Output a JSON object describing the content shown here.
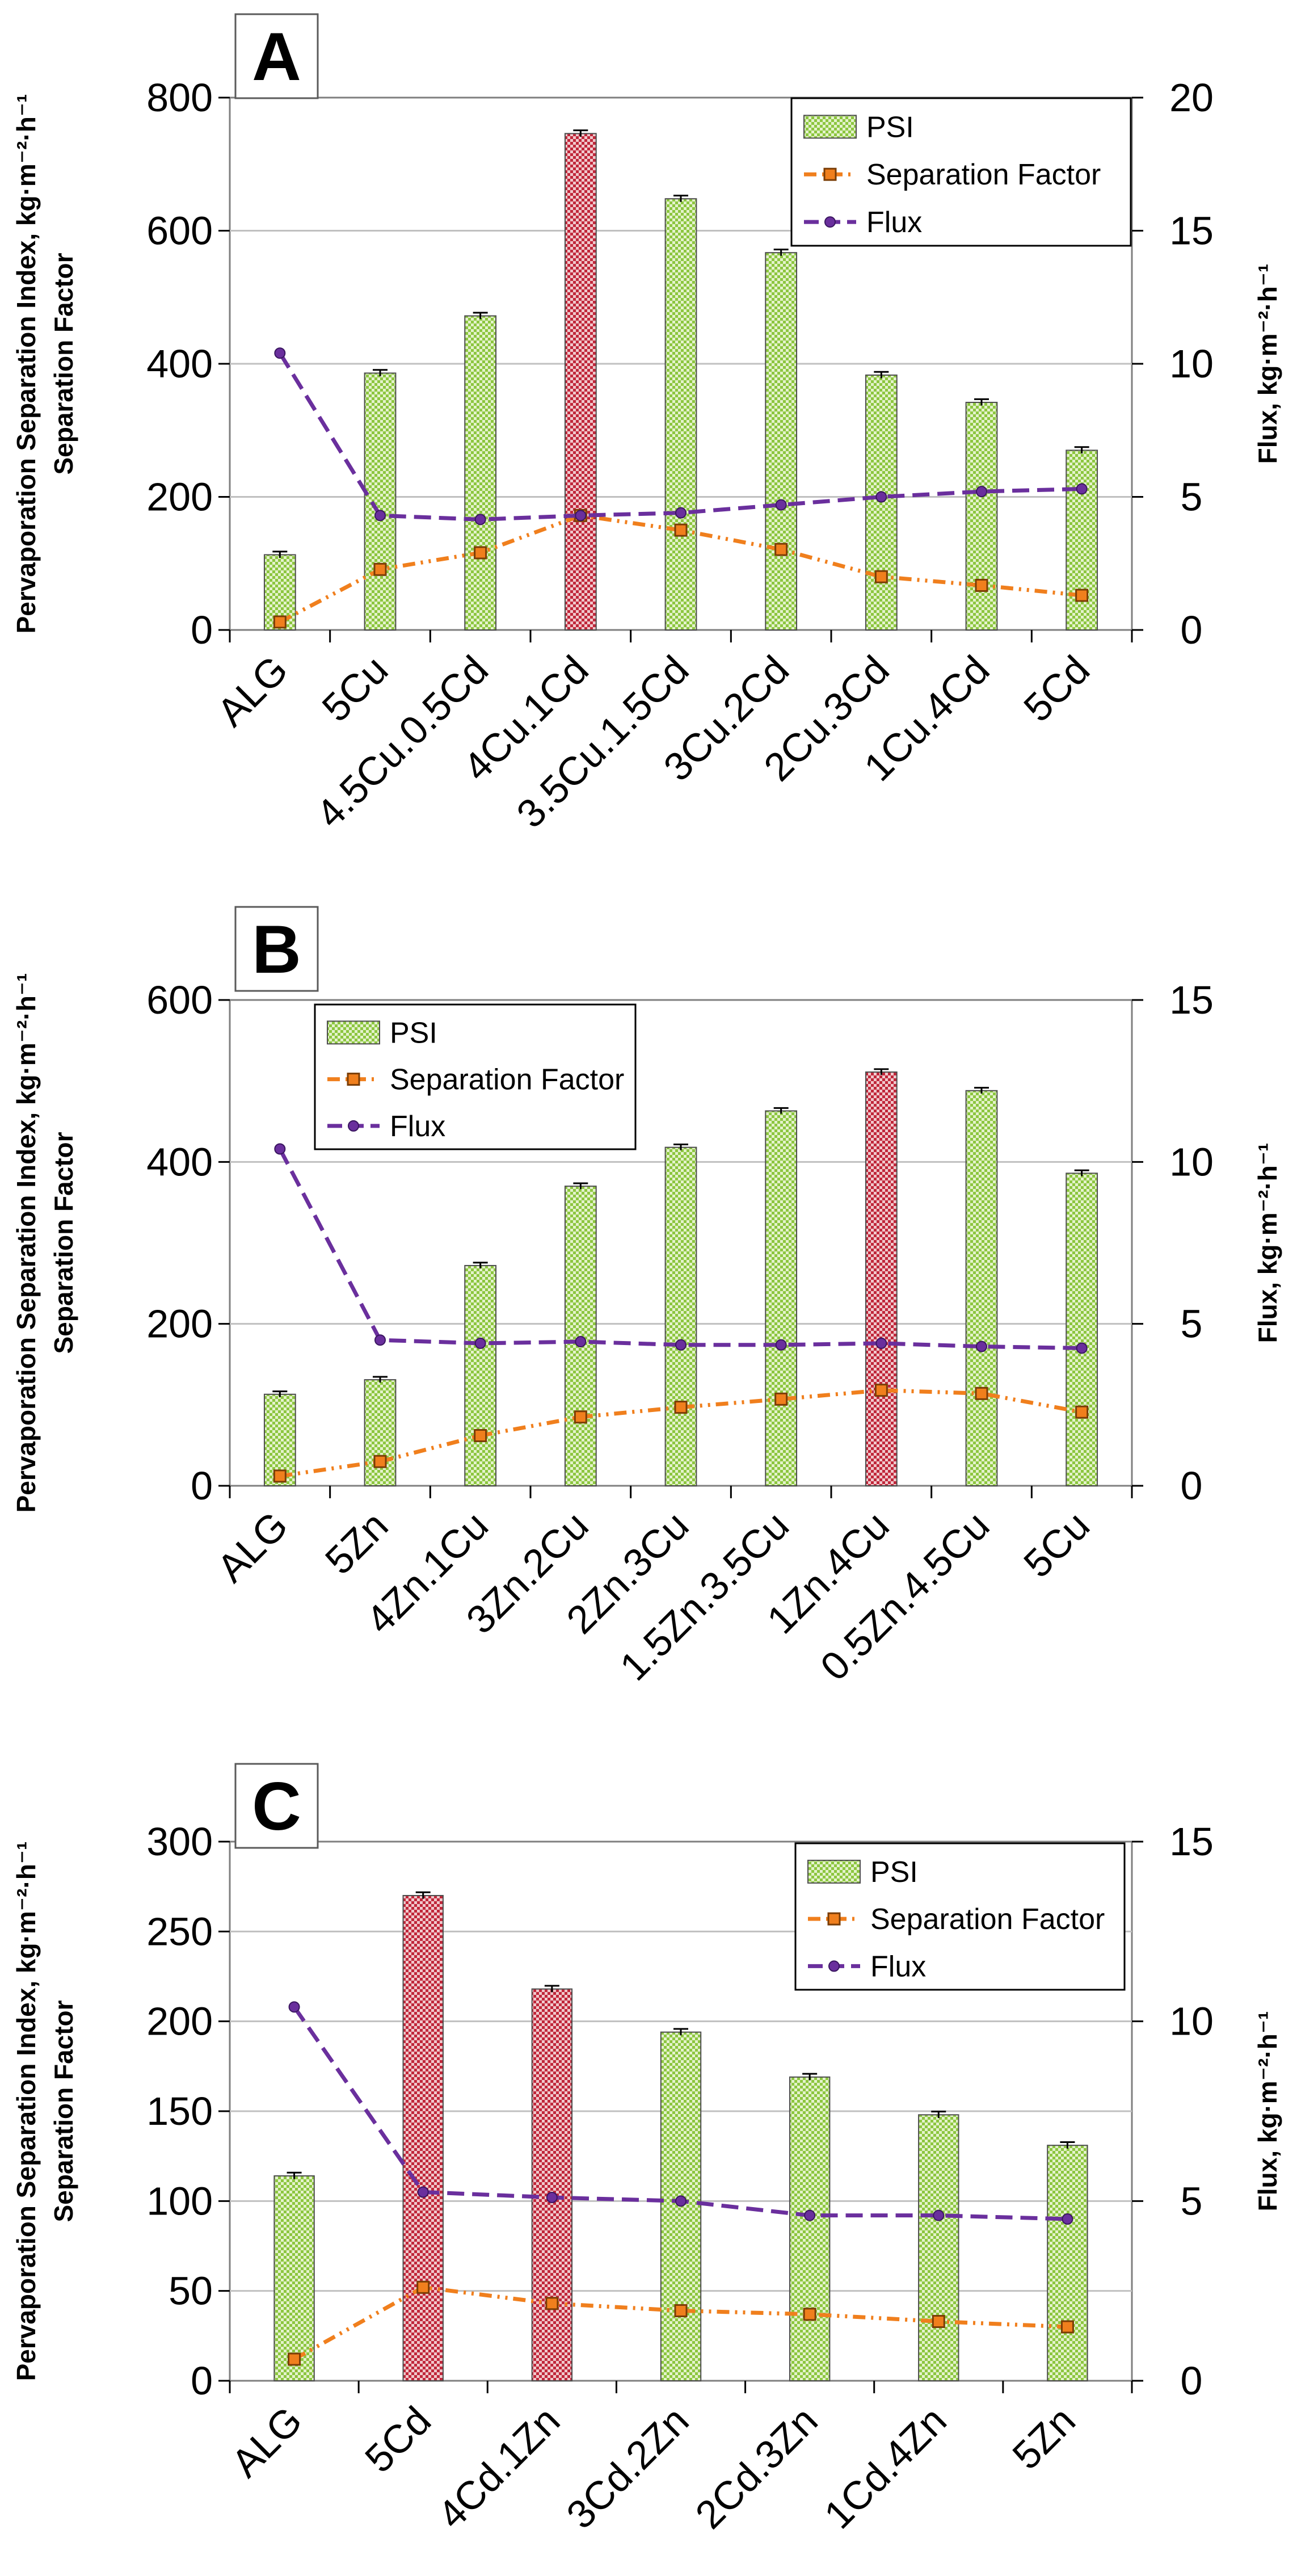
{
  "colors": {
    "psi_green": "#8cc63f",
    "psi_red": "#c0273a",
    "separation_orange": "#f07f1d",
    "flux_purple": "#6a2f9d",
    "grid": "#c0c0c0",
    "axis": "#7f7f7f"
  },
  "chart_data": [
    {
      "panel": "A",
      "type": "bar",
      "categories": [
        "ALG",
        "5Cu",
        "4.5Cu.0.5Cd",
        "4Cu.1Cd",
        "3.5Cu.1.5Cd",
        "3Cu.2Cd",
        "2Cu.3Cd",
        "1Cu.4Cd",
        "5Cd"
      ],
      "ylabel_line1": "Pervaporation Separation Index, kg·m⁻²·h⁻¹",
      "ylabel_line2": "Separation Factor",
      "y2label": "Flux, kg·m⁻²·h⁻¹",
      "ylim": [
        0,
        800
      ],
      "yticks": [
        0,
        200,
        400,
        600,
        800
      ],
      "y2lim": [
        0,
        20
      ],
      "y2ticks": [
        0,
        5,
        10,
        15,
        20
      ],
      "grid": true,
      "legend_position": "top-right",
      "highlight_index": 3,
      "series": [
        {
          "name": "PSI",
          "kind": "bar",
          "values": [
            113,
            386,
            472,
            746,
            648,
            567,
            383,
            342,
            270
          ]
        },
        {
          "name": "Separation Factor",
          "kind": "line",
          "values": [
            12,
            91,
            116,
            172,
            150,
            121,
            80,
            67,
            52
          ]
        },
        {
          "name": "Flux",
          "kind": "line",
          "values": [
            10.4,
            4.3,
            4.15,
            4.3,
            4.4,
            4.7,
            5.0,
            5.2,
            5.3
          ]
        }
      ]
    },
    {
      "panel": "B",
      "type": "bar",
      "categories": [
        "ALG",
        "5Zn",
        "4Zn.1Cu",
        "3Zn.2Cu",
        "2Zn.3Cu",
        "1.5Zn.3.5Cu",
        "1Zn.4Cu",
        "0.5Zn.4.5Cu",
        "5Cu"
      ],
      "ylabel_line1": "Pervaporation Separation Index, kg·m⁻²·h⁻¹",
      "ylabel_line2": "Separation Factor",
      "y2label": "Flux, kg·m⁻²·h⁻¹",
      "ylim": [
        0,
        600
      ],
      "yticks": [
        0,
        200,
        400,
        600
      ],
      "y2lim": [
        0,
        15
      ],
      "y2ticks": [
        0,
        5,
        10,
        15
      ],
      "grid": true,
      "legend_position": "top-left",
      "highlight_index": 6,
      "series": [
        {
          "name": "PSI",
          "kind": "bar",
          "values": [
            113,
            131,
            272,
            370,
            418,
            463,
            511,
            488,
            386
          ]
        },
        {
          "name": "Separation Factor",
          "kind": "line",
          "values": [
            12,
            30,
            62,
            85,
            97,
            107,
            118,
            114,
            91
          ]
        },
        {
          "name": "Flux",
          "kind": "line",
          "values": [
            10.4,
            4.5,
            4.4,
            4.45,
            4.35,
            4.35,
            4.4,
            4.3,
            4.25
          ]
        }
      ]
    },
    {
      "panel": "C",
      "type": "bar",
      "categories": [
        "ALG",
        "5Cd",
        "4Cd.1Zn",
        "3Cd.2Zn",
        "2Cd.3Zn",
        "1Cd.4Zn",
        "5Zn"
      ],
      "ylabel_line1": "Pervaporation Separation Index, kg·m⁻²·h⁻¹",
      "ylabel_line2": "Separation Factor",
      "y2label": "Flux, kg·m⁻²·h⁻¹",
      "ylim": [
        0,
        300
      ],
      "yticks": [
        0,
        50,
        100,
        150,
        200,
        250,
        300
      ],
      "y2lim": [
        0,
        15
      ],
      "y2ticks": [
        0,
        5,
        10,
        15
      ],
      "grid": true,
      "legend_position": "top-right",
      "highlight_indices": [
        1,
        2
      ],
      "series": [
        {
          "name": "PSI",
          "kind": "bar",
          "values": [
            114,
            270,
            218,
            194,
            169,
            148,
            131
          ]
        },
        {
          "name": "Separation Factor",
          "kind": "line",
          "values": [
            12,
            52,
            43,
            39,
            37,
            33,
            30
          ]
        },
        {
          "name": "Flux",
          "kind": "line",
          "values": [
            10.4,
            5.25,
            5.1,
            5.0,
            4.6,
            4.6,
            4.5
          ]
        }
      ]
    }
  ]
}
